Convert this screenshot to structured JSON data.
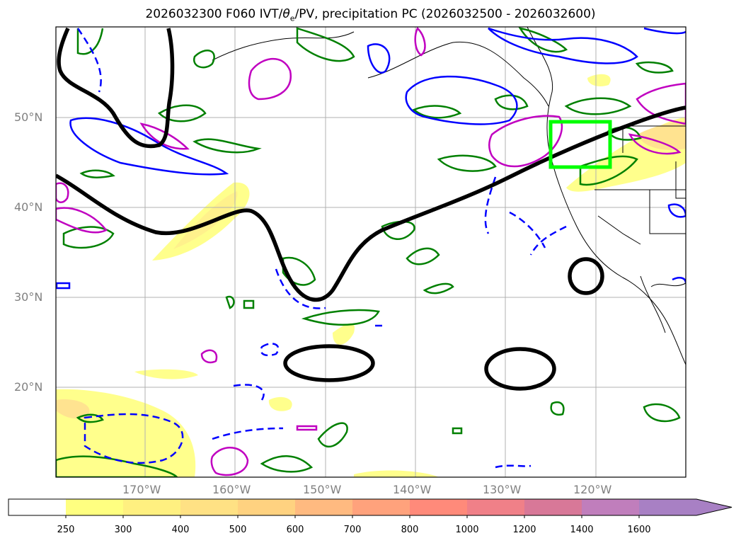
{
  "title": {
    "prefix": "2026032300 F060 IVT/",
    "theta": "θ",
    "theta_sub": "e",
    "suffix": "/PV, precipitation PC (2026032500 - 2026032600)"
  },
  "lat_labels": [
    "50°N",
    "40°N",
    "30°N",
    "20°N"
  ],
  "lon_labels": [
    "170°W",
    "160°W",
    "150°W",
    "140°W",
    "130°W",
    "120°W"
  ],
  "colorbar": {
    "ticks": [
      "250",
      "300",
      "400",
      "500",
      "600",
      "700",
      "800",
      "1000",
      "1200",
      "1400",
      "1600"
    ],
    "colors": [
      "#ffffff",
      "#ffff80",
      "#fff080",
      "#ffe184",
      "#ffd280",
      "#ffba80",
      "#ffa27c",
      "#ff8a7a",
      "#f08088",
      "#d87898",
      "#c07ebc",
      "#a880c4"
    ],
    "extend": "max"
  },
  "colors": {
    "jet": "#000000",
    "theta_e": "#008000",
    "pv_neg": "#0000ff",
    "pv_pos": "#c000c0",
    "highlight_box": "#00ff00"
  }
}
